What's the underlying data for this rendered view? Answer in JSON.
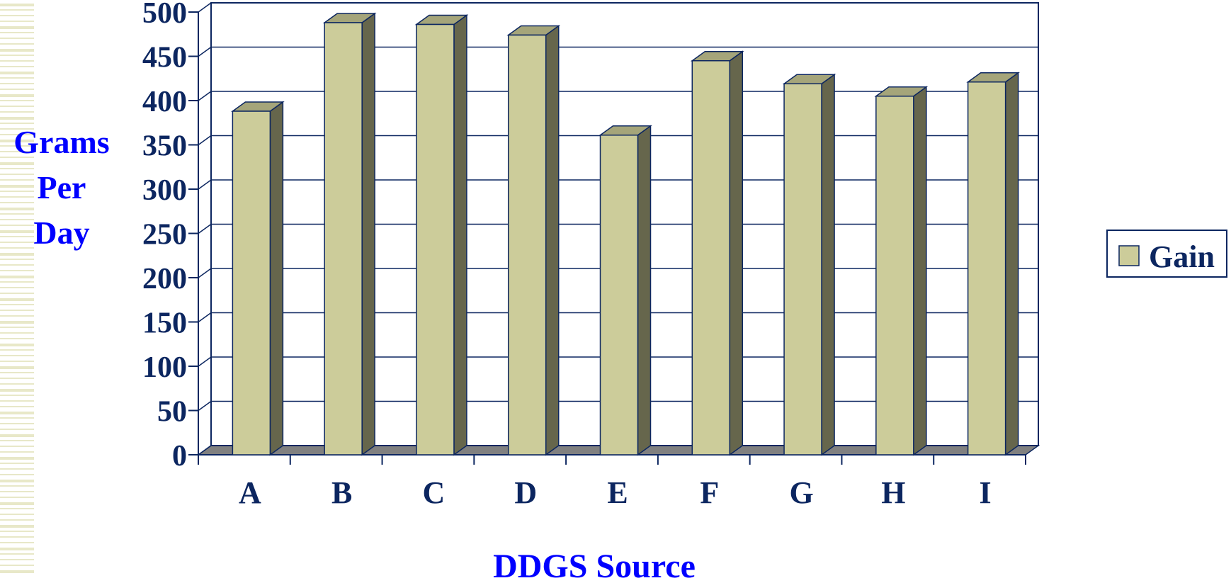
{
  "chart_data": {
    "type": "bar",
    "categories": [
      "A",
      "B",
      "C",
      "D",
      "E",
      "F",
      "G",
      "H",
      "I"
    ],
    "series": [
      {
        "name": "Gain",
        "values": [
          388,
          488,
          486,
          474,
          361,
          445,
          419,
          405,
          421
        ]
      }
    ],
    "title": "",
    "xlabel": "DDGS Source",
    "ylabel": [
      "Grams",
      "Per",
      "Day"
    ],
    "ylim": [
      0,
      500
    ],
    "yticks": [
      "0",
      "50",
      "100",
      "150",
      "200",
      "250",
      "300",
      "350",
      "400",
      "450",
      "500"
    ],
    "grid": true,
    "legend_position": "right",
    "colors": {
      "bar_face": "#cccc9a",
      "bar_side": "#66664c",
      "bar_top": "#a5a57a",
      "floor": "#808080",
      "outline": "#0c2660",
      "tick_text": "#0c2660",
      "axis_title": "#0000ff",
      "stripe": "#e8e8c8"
    }
  }
}
